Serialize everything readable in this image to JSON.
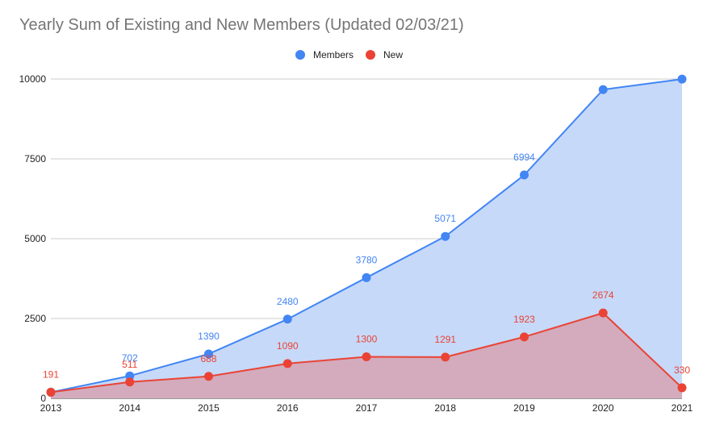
{
  "chart_data": {
    "type": "area",
    "title": "Yearly Sum of Existing and New Members (Updated 02/03/21)",
    "xlabel": "",
    "ylabel": "",
    "categories": [
      "2013",
      "2014",
      "2015",
      "2016",
      "2017",
      "2018",
      "2019",
      "2020",
      "2021"
    ],
    "ylim": [
      0,
      10000
    ],
    "yticks": [
      0,
      2500,
      5000,
      7500,
      10000
    ],
    "grid": true,
    "legend_position": "top",
    "series": [
      {
        "name": "Members",
        "color": "#4285f4",
        "fill": "#c6d9f8",
        "values": [
          191,
          702,
          1390,
          2480,
          3780,
          5071,
          6994,
          9668,
          9998
        ],
        "labels": [
          null,
          "702",
          "1390",
          "2480",
          "3780",
          "5071",
          "6994",
          null,
          null
        ]
      },
      {
        "name": "New",
        "color": "#ea4335",
        "fill": "#d3abbc",
        "values": [
          191,
          511,
          688,
          1090,
          1300,
          1291,
          1923,
          2674,
          330
        ],
        "labels": [
          "191",
          "511",
          "688",
          "1090",
          "1300",
          "1291",
          "1923",
          "2674",
          "330"
        ]
      }
    ]
  }
}
